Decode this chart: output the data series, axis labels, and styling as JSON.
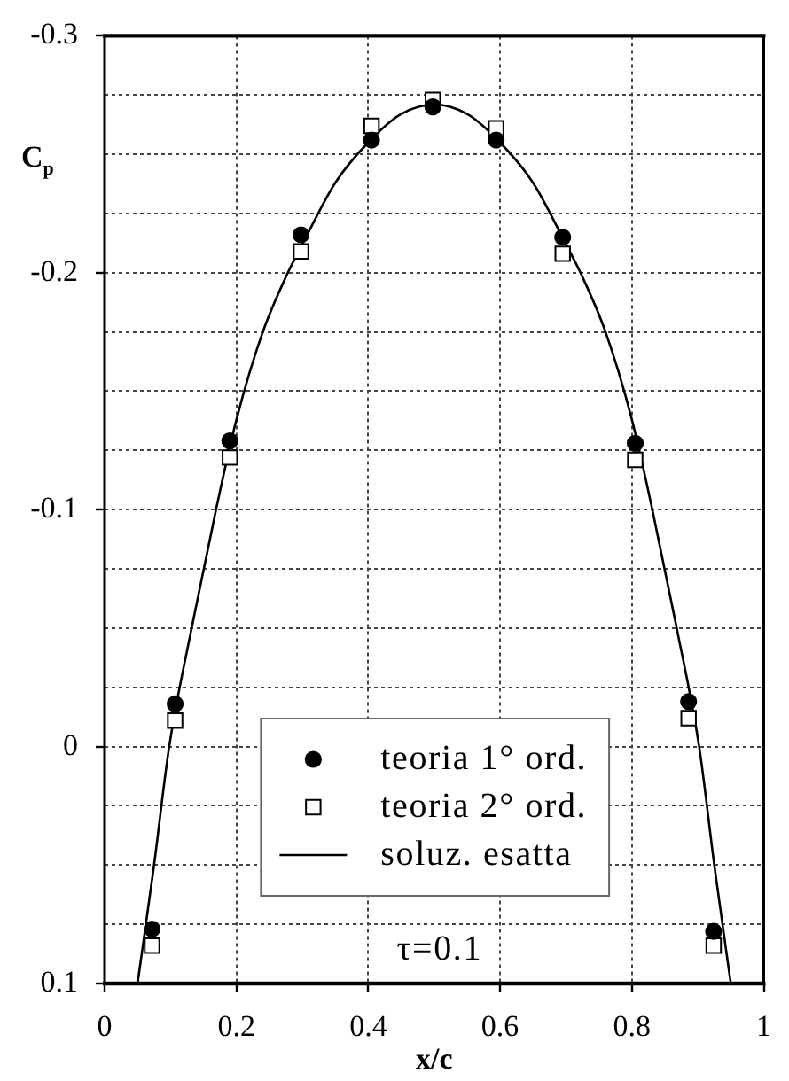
{
  "chart_data": {
    "type": "scatter",
    "ylabel": "C$_{p}$",
    "xlabel": "x/c",
    "annotations": [
      "τ=0.1"
    ],
    "x": [
      0.072,
      0.107,
      0.19,
      0.298,
      0.405,
      0.498,
      0.594,
      0.695,
      0.805,
      0.886,
      0.924
    ],
    "series": [
      {
        "name": "teoria 1° ord.",
        "type": "scatter",
        "marker": "circle",
        "color": "#000000",
        "values": [
          0.077,
          -0.018,
          -0.129,
          -0.216,
          -0.256,
          -0.27,
          -0.256,
          -0.215,
          -0.128,
          -0.019,
          0.078
        ]
      },
      {
        "name": "teoria 2° ord.",
        "type": "scatter",
        "marker": "square",
        "color": "#000000",
        "values": [
          0.084,
          -0.011,
          -0.122,
          -0.209,
          -0.262,
          -0.273,
          -0.261,
          -0.208,
          -0.121,
          -0.012,
          0.084
        ]
      },
      {
        "name": "soluz. esatta",
        "type": "line",
        "marker": "none",
        "line_style": "solid",
        "color": "#000000",
        "x": [
          0.05,
          0.075,
          0.098,
          0.132,
          0.169,
          0.2,
          0.24,
          0.278,
          0.3,
          0.35,
          0.4,
          0.45,
          0.5,
          0.55,
          0.6,
          0.65,
          0.7,
          0.722,
          0.76,
          0.8,
          0.831,
          0.868,
          0.902,
          0.925,
          0.95
        ],
        "values": [
          0.1,
          0.05,
          0,
          -0.05,
          -0.1,
          -0.138,
          -0.175,
          -0.2,
          -0.212,
          -0.238,
          -0.255,
          -0.267,
          -0.271,
          -0.267,
          -0.255,
          -0.238,
          -0.212,
          -0.2,
          -0.175,
          -0.138,
          -0.1,
          -0.05,
          0,
          0.05,
          0.1
        ]
      }
    ],
    "xlim": [
      0,
      1
    ],
    "xticks": [
      0,
      0.2,
      0.4,
      0.6,
      0.8,
      1
    ],
    "ylim": [
      0.1,
      -0.3
    ],
    "yticks": [
      -0.3,
      {
        "value": -0.275,
        "label": null
      },
      {
        "value": -0.25,
        "label": null
      },
      {
        "value": -0.225,
        "label": null
      },
      -0.2,
      {
        "value": -0.175,
        "label": null
      },
      {
        "value": -0.15,
        "label": null
      },
      {
        "value": -0.125,
        "label": null
      },
      -0.1,
      {
        "value": -0.075,
        "label": null
      },
      {
        "value": -0.05,
        "label": null
      },
      {
        "value": -0.025,
        "label": null
      },
      0,
      {
        "value": 0.025,
        "label": null
      },
      {
        "value": 0.05,
        "label": null
      },
      {
        "value": 0.075,
        "label": null
      },
      0.1
    ],
    "grid": true,
    "legend": "bottom"
  }
}
